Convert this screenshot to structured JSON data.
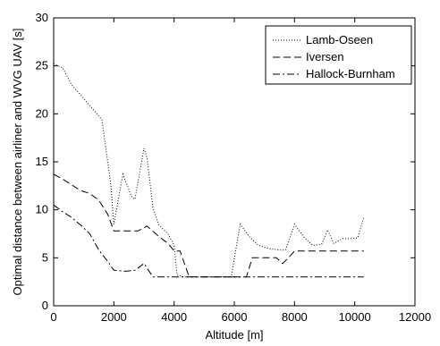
{
  "chart_data": {
    "type": "line",
    "title": "",
    "xlabel": "Altitude [m]",
    "ylabel": "Optimal distance between airliner and WVG UAV [s]",
    "xlim": [
      0,
      12000
    ],
    "ylim": [
      0,
      30
    ],
    "xticks": [
      0,
      2000,
      4000,
      6000,
      8000,
      10000,
      12000
    ],
    "yticks": [
      0,
      5,
      10,
      15,
      20,
      25,
      30
    ],
    "grid": false,
    "legend_position": "top-right",
    "series": [
      {
        "name": "Lamb-Oseen",
        "linestyle": "dotted",
        "color": "#000000",
        "x": [
          0,
          300,
          600,
          1000,
          1300,
          1600,
          1900,
          2000,
          2300,
          2600,
          2700,
          3000,
          3100,
          3300,
          3500,
          3800,
          4000,
          4100,
          4300,
          4600,
          5000,
          5500,
          5900,
          6100,
          6200,
          6500,
          6800,
          7100,
          7500,
          7700,
          8000,
          8300,
          8600,
          8900,
          9100,
          9300,
          9600,
          9900,
          10100,
          10300
        ],
        "y": [
          25.2,
          24.8,
          23.0,
          21.6,
          20.5,
          19.4,
          12.6,
          8.5,
          13.7,
          11.3,
          11.1,
          16.4,
          15.4,
          10.2,
          8.4,
          7.5,
          6.3,
          3.2,
          3.0,
          3.0,
          3.0,
          3.0,
          3.0,
          6.8,
          8.5,
          7.2,
          6.3,
          6.0,
          5.8,
          5.8,
          8.5,
          7.2,
          6.3,
          6.4,
          7.9,
          6.5,
          7.0,
          7.0,
          7.1,
          9.2
        ]
      },
      {
        "name": "Iversen",
        "linestyle": "dashed",
        "color": "#000000",
        "x": [
          0,
          300,
          600,
          900,
          1200,
          1500,
          1800,
          2000,
          2400,
          2800,
          3100,
          3500,
          3800,
          4000,
          4200,
          4500,
          4800,
          5200,
          5600,
          6000,
          6400,
          6600,
          7000,
          7400,
          7600,
          7800,
          8000,
          8400,
          8800,
          9200,
          9600,
          10000,
          10300
        ],
        "y": [
          13.7,
          13.2,
          12.6,
          12.0,
          11.7,
          11.0,
          9.5,
          7.8,
          7.8,
          7.8,
          8.3,
          7.2,
          6.5,
          5.7,
          5.7,
          3.0,
          3.0,
          3.0,
          3.0,
          3.0,
          3.0,
          5.0,
          5.0,
          5.0,
          4.4,
          5.0,
          5.7,
          5.7,
          5.7,
          5.7,
          5.7,
          5.7,
          5.7
        ]
      },
      {
        "name": "Hallock-Burnham",
        "linestyle": "dashdot",
        "color": "#000000",
        "x": [
          0,
          300,
          600,
          900,
          1200,
          1500,
          1800,
          2000,
          2400,
          2700,
          3000,
          3300,
          3600,
          4000,
          4500,
          5000,
          5500,
          6000,
          6500,
          7000,
          7500,
          8000,
          8500,
          9000,
          9500,
          10000,
          10300
        ],
        "y": [
          10.5,
          9.8,
          9.2,
          8.4,
          7.5,
          5.8,
          4.6,
          3.7,
          3.6,
          3.7,
          4.4,
          3.0,
          3.0,
          3.0,
          3.0,
          3.0,
          3.0,
          3.0,
          3.0,
          3.0,
          3.0,
          3.0,
          3.0,
          3.0,
          3.0,
          3.0,
          3.0
        ]
      }
    ]
  }
}
